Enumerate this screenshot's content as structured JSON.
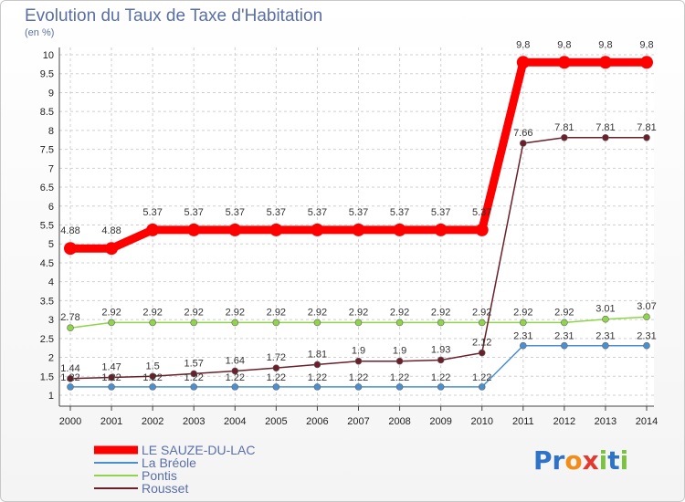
{
  "header": {
    "title": "Evolution du Taux de Taxe d'Habitation",
    "subtitle": "(en %)"
  },
  "logo": {
    "text": "Proxiti"
  },
  "chart_data": {
    "type": "line",
    "title": "Evolution du Taux de Taxe d'Habitation",
    "ylabel": "(en %)",
    "xlabel": "",
    "x": [
      "2000",
      "2001",
      "2002",
      "2003",
      "2004",
      "2005",
      "2006",
      "2007",
      "2008",
      "2009",
      "2010",
      "2011",
      "2012",
      "2013",
      "2014"
    ],
    "ylim": [
      1,
      10
    ],
    "yticks": [
      "1",
      "1.5",
      "2",
      "2.5",
      "3",
      "3.5",
      "4",
      "4.5",
      "5",
      "5.5",
      "6",
      "6.5",
      "7",
      "7.5",
      "8",
      "8.5",
      "9",
      "9.5",
      "10"
    ],
    "grid": true,
    "legend_position": "bottom-left",
    "series": [
      {
        "name": "LE SAUZE-DU-LAC",
        "color": "#ff0000",
        "values": [
          4.88,
          4.88,
          5.37,
          5.37,
          5.37,
          5.37,
          5.37,
          5.37,
          5.37,
          5.37,
          5.37,
          9.8,
          9.8,
          9.8,
          9.8
        ],
        "labels": [
          "4.88",
          "4.88",
          "5.37",
          "5.37",
          "5.37",
          "5.37",
          "5.37",
          "5.37",
          "5.37",
          "5.37",
          "5.37",
          "9.8",
          "9.8",
          "9.8",
          "9.8"
        ]
      },
      {
        "name": "La Bréole",
        "color": "#4a8fd0",
        "values": [
          1.22,
          1.22,
          1.22,
          1.22,
          1.22,
          1.22,
          1.22,
          1.22,
          1.22,
          1.22,
          1.22,
          2.31,
          2.31,
          2.31,
          2.31
        ],
        "labels": [
          "1.22",
          "1.22",
          "1.22",
          "1.22",
          "1.22",
          "1.22",
          "1.22",
          "1.22",
          "1.22",
          "1.22",
          "1.22",
          "2.31",
          "2.31",
          "2.31",
          "2.31"
        ]
      },
      {
        "name": "Pontis",
        "color": "#8fd44a",
        "values": [
          2.78,
          2.92,
          2.92,
          2.92,
          2.92,
          2.92,
          2.92,
          2.92,
          2.92,
          2.92,
          2.92,
          2.92,
          2.92,
          3.01,
          3.07
        ],
        "labels": [
          "2.78",
          "2.92",
          "2.92",
          "2.92",
          "2.92",
          "2.92",
          "2.92",
          "2.92",
          "2.92",
          "2.92",
          "2.92",
          "2.92",
          "2.92",
          "3.01",
          "3.07"
        ]
      },
      {
        "name": "Rousset",
        "color": "#6b1f2a",
        "values": [
          1.44,
          1.47,
          1.5,
          1.57,
          1.64,
          1.72,
          1.81,
          1.9,
          1.9,
          1.93,
          2.12,
          7.66,
          7.81,
          7.81,
          7.81
        ],
        "labels": [
          "1.44",
          "1.47",
          "1.5",
          "1.57",
          "1.64",
          "1.72",
          "1.81",
          "1.9",
          "1.9",
          "1.93",
          "2.12",
          "7.66",
          "7.81",
          "7.81",
          "7.81"
        ]
      }
    ]
  }
}
